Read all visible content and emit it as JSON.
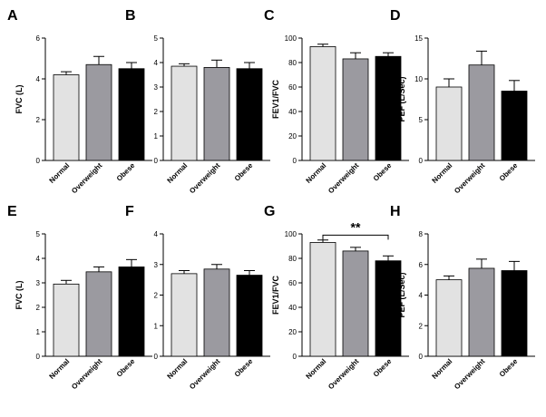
{
  "categories": [
    "Normal",
    "Overweight",
    "Obese"
  ],
  "colors": {
    "Normal": "#e2e2e2",
    "Overweight": "#9b9aa0",
    "Obese": "#000000"
  },
  "chart_data": [
    {
      "panel": "A",
      "type": "bar",
      "ylabel": "FVC (L)",
      "ylim": [
        0,
        6
      ],
      "yticks": [
        0,
        2,
        4,
        6
      ],
      "series": [
        {
          "values": [
            4.2,
            4.7,
            4.5
          ],
          "errors": [
            0.15,
            0.4,
            0.3
          ]
        }
      ]
    },
    {
      "panel": "B",
      "type": "bar",
      "ylabel": "FEV1 (L)",
      "ylim": [
        0,
        5
      ],
      "yticks": [
        0,
        1,
        2,
        3,
        4,
        5
      ],
      "series": [
        {
          "values": [
            3.85,
            3.8,
            3.75
          ],
          "errors": [
            0.1,
            0.3,
            0.25
          ]
        }
      ]
    },
    {
      "panel": "C",
      "type": "bar",
      "ylabel": "FEV1/FVC",
      "ylim": [
        0,
        100
      ],
      "yticks": [
        0,
        20,
        40,
        60,
        80,
        100
      ],
      "series": [
        {
          "values": [
            93,
            83,
            85
          ],
          "errors": [
            2,
            5,
            3
          ]
        }
      ]
    },
    {
      "panel": "D",
      "type": "bar",
      "ylabel": "PEF (L/Sec)",
      "ylim": [
        0,
        15
      ],
      "yticks": [
        0,
        5,
        10,
        15
      ],
      "series": [
        {
          "values": [
            9.0,
            11.7,
            8.5
          ],
          "errors": [
            1.0,
            1.7,
            1.3
          ]
        }
      ]
    },
    {
      "panel": "E",
      "type": "bar",
      "ylabel": "FVC (L)",
      "ylim": [
        0,
        5
      ],
      "yticks": [
        0,
        1,
        2,
        3,
        4,
        5
      ],
      "series": [
        {
          "values": [
            2.95,
            3.45,
            3.65
          ],
          "errors": [
            0.15,
            0.2,
            0.3
          ]
        }
      ]
    },
    {
      "panel": "F",
      "type": "bar",
      "ylabel": "FEV1 (L)",
      "ylim": [
        0,
        4
      ],
      "yticks": [
        0,
        1,
        2,
        3,
        4
      ],
      "series": [
        {
          "values": [
            2.7,
            2.85,
            2.65
          ],
          "errors": [
            0.1,
            0.15,
            0.15
          ]
        }
      ]
    },
    {
      "panel": "G",
      "type": "bar",
      "ylabel": "FEV1/FVC",
      "ylim": [
        0,
        100
      ],
      "yticks": [
        0,
        20,
        40,
        60,
        80,
        100
      ],
      "series": [
        {
          "values": [
            93,
            86,
            78
          ],
          "errors": [
            2,
            3,
            4
          ]
        }
      ],
      "annotation": {
        "text": "**",
        "from": "Normal",
        "to": "Obese",
        "y": 99
      }
    },
    {
      "panel": "H",
      "type": "bar",
      "ylabel": "PEF (L/Sec)",
      "ylim": [
        0,
        8
      ],
      "yticks": [
        0,
        2,
        4,
        6,
        8
      ],
      "series": [
        {
          "values": [
            5.0,
            5.75,
            5.6
          ],
          "errors": [
            0.25,
            0.6,
            0.6
          ]
        }
      ]
    }
  ]
}
